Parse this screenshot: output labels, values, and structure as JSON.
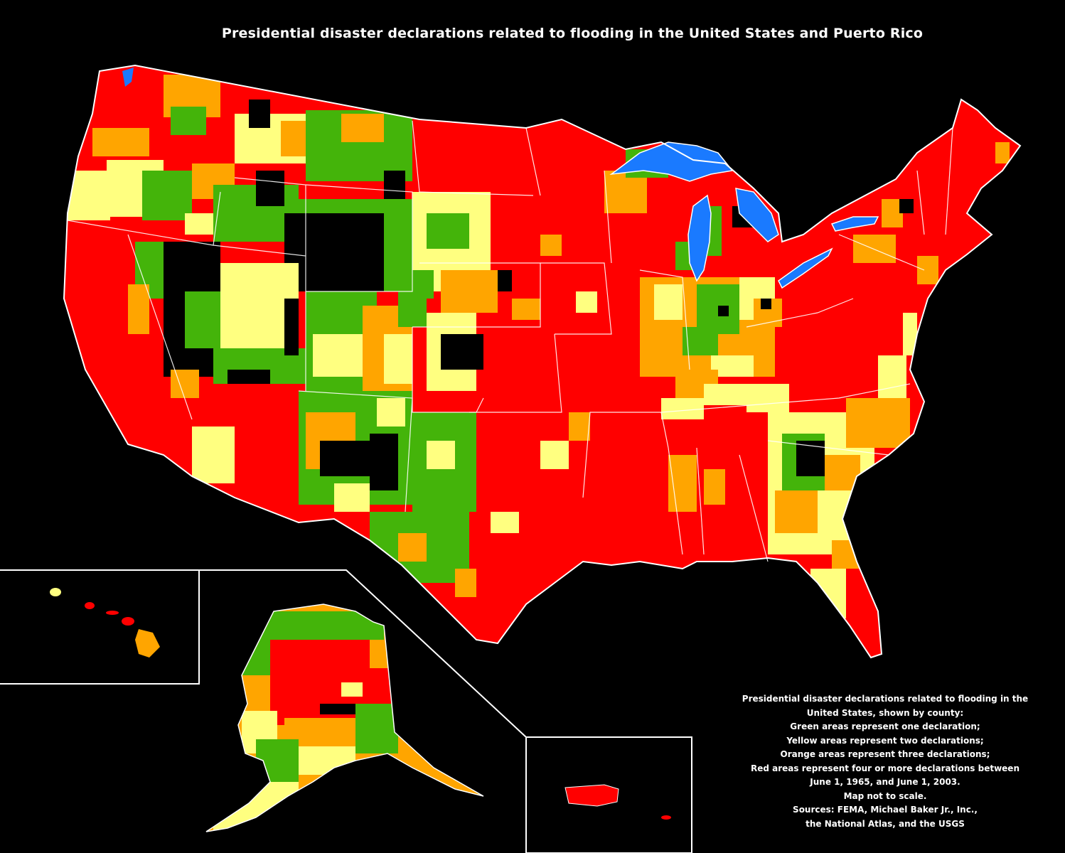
{
  "title": "Presidential disaster declarations related to flooding in the United States and Puerto Rico",
  "legend": {
    "lines": [
      "Presidential disaster declarations related to flooding in the",
      "United States, shown by county:",
      "Green areas represent one declaration;",
      "Yellow areas represent two declarations;",
      "Orange areas represent three declarations;",
      "Red areas represent four or more declarations between",
      "June 1, 1965, and June 1, 2003.",
      "Map not to scale.",
      "Sources: FEMA, Michael Baker Jr., Inc.,",
      "the National Atlas, and the USGS"
    ]
  },
  "colors": {
    "background": "#000000",
    "one_declaration": "#44b40a",
    "two_declarations": "#ffff80",
    "three_declarations": "#ffa500",
    "four_or_more": "#ff0000",
    "water": "#1a7aff",
    "borders": "#ffffff"
  },
  "regions": [
    "Contiguous United States",
    "Alaska",
    "Hawaii",
    "Puerto Rico"
  ]
}
